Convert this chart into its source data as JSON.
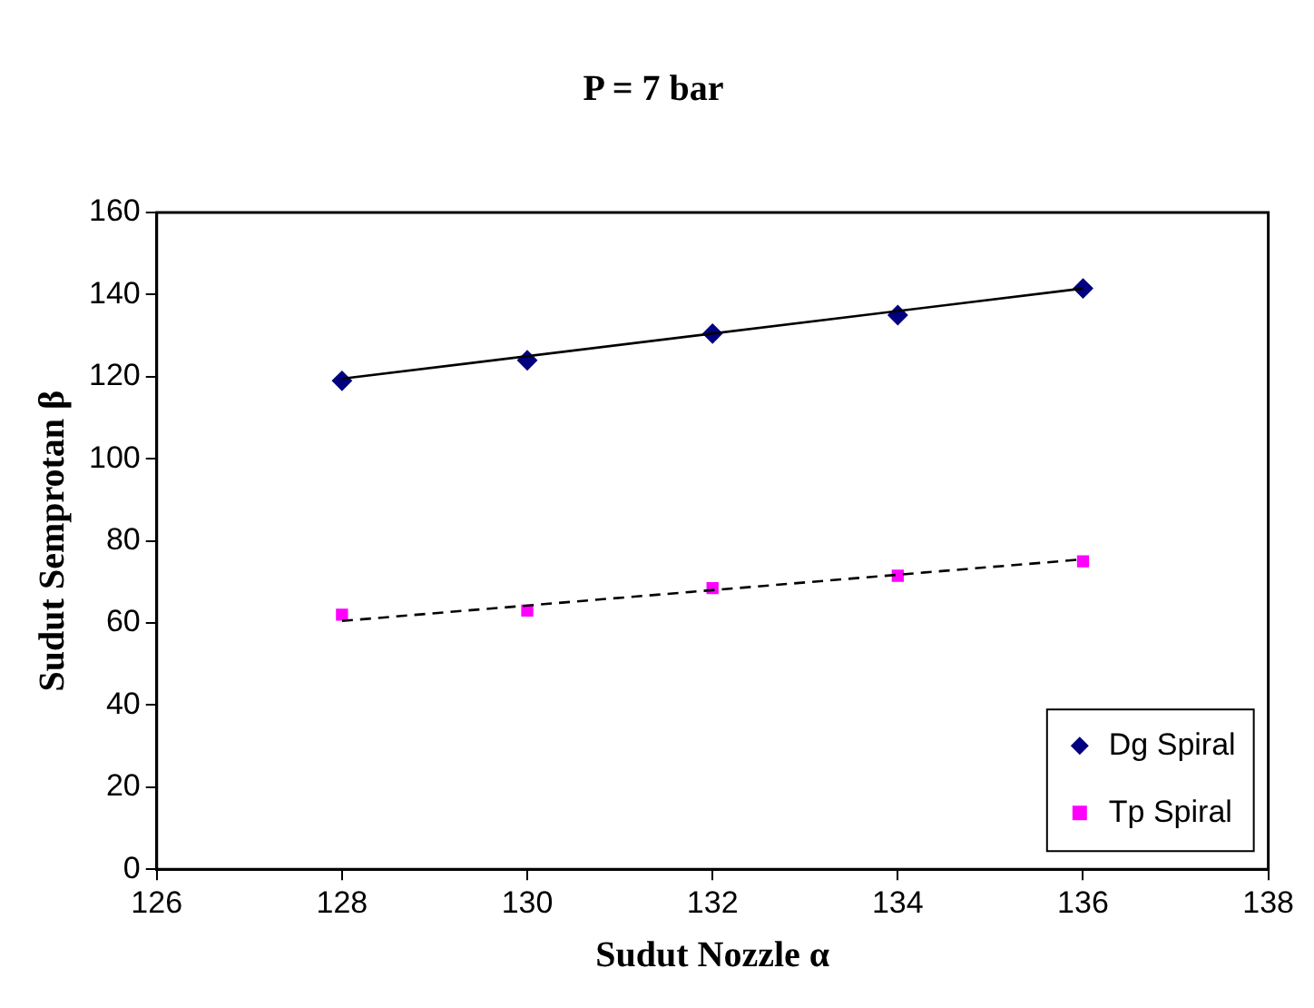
{
  "chart_data": {
    "type": "scatter",
    "title": "P = 7 bar",
    "xlabel": "Sudut Nozzle α",
    "ylabel": "Sudut Semprotan β",
    "xlim": [
      126,
      138
    ],
    "xticks": [
      126,
      128,
      130,
      132,
      134,
      136,
      138
    ],
    "ylim": [
      0,
      160
    ],
    "yticks": [
      0,
      20,
      40,
      60,
      80,
      100,
      120,
      140,
      160
    ],
    "grid": false,
    "legend": "bottom right",
    "series": [
      {
        "name": "Dg Spiral",
        "color": "#000080",
        "marker": "diamond",
        "x": [
          128,
          130,
          132,
          134,
          136
        ],
        "values": [
          119,
          124,
          130.5,
          135,
          141.5
        ]
      },
      {
        "name": "Tp Spiral",
        "color": "#ff00ff",
        "marker": "square",
        "x": [
          128,
          130,
          132,
          134,
          136
        ],
        "values": [
          62,
          63,
          68.5,
          71.5,
          75
        ]
      },
      {
        "type": "line",
        "color": "#000000",
        "marker": "none",
        "line_style": "solid",
        "x": [
          128,
          136
        ],
        "values": [
          119.5,
          141.5
        ]
      },
      {
        "type": "line",
        "color": "#000000",
        "marker": "none",
        "line_style": "dashed",
        "x": [
          128,
          136
        ],
        "values": [
          60.5,
          75.5
        ]
      }
    ]
  }
}
